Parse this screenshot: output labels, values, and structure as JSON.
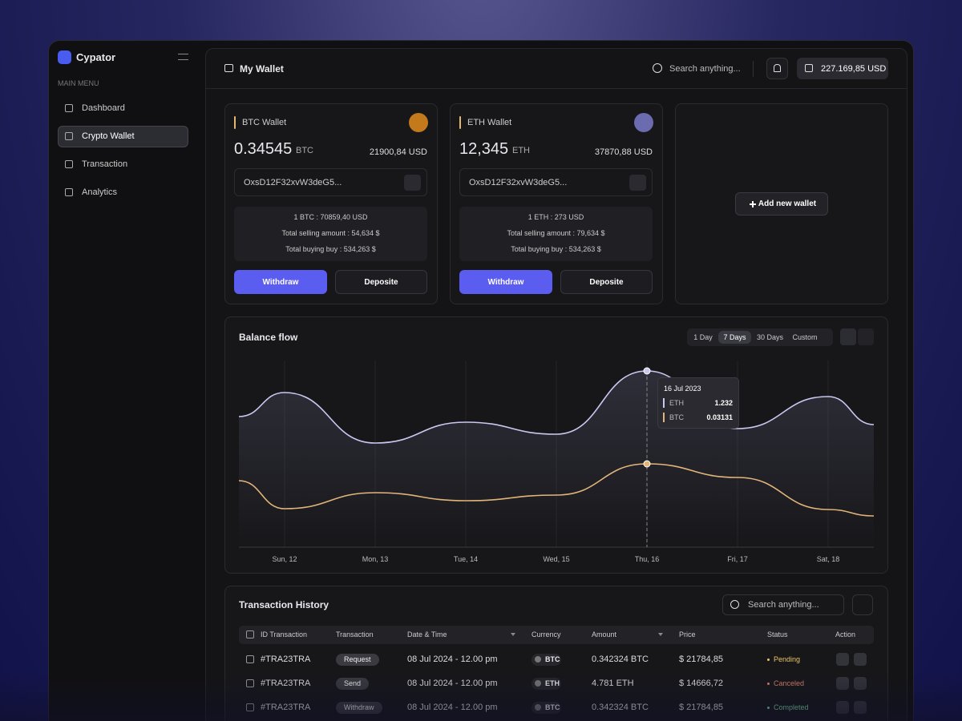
{
  "sidebar": {
    "brand": "Cypator",
    "menu_label": "MAIN MENU",
    "items": [
      "Dashboard",
      "Crypto Wallet",
      "Transaction",
      "Analytics"
    ]
  },
  "header": {
    "title": "My Wallet",
    "search": "Search anything...",
    "balance": "227.169,85 USD"
  },
  "wallets": [
    {
      "name": "BTC Wallet",
      "amount": "0.34545",
      "unit": "BTC",
      "usd": "21900,84 USD",
      "address": "OxsD12F32xvW3deG5...",
      "rate": "1 BTC : 70859,40 USD",
      "selling": "Total selling amount : 54,634 $",
      "buying": "Total buying buy : 534,263 $",
      "withdraw": "Withdraw",
      "deposit": "Deposite"
    },
    {
      "name": "ETH Wallet",
      "amount": "12,345",
      "unit": "ETH",
      "usd": "37870,88 USD",
      "address": "OxsD12F32xvW3deG5...",
      "rate": "1 ETH : 273 USD",
      "selling": "Total selling amount : 79,634 $",
      "buying": "Total buying buy : 534,263 $",
      "withdraw": "Withdraw",
      "deposit": "Deposite"
    }
  ],
  "add_wallet": "Add new wallet",
  "balance_flow": {
    "title": "Balance flow",
    "ranges": [
      "1 Day",
      "7 Days",
      "30 Days",
      "Custom"
    ],
    "days": [
      "Sun, 12",
      "Mon, 13",
      "Tue, 14",
      "Wed, 15",
      "Thu, 16",
      "Fri, 17",
      "Sat, 18"
    ],
    "tooltip": {
      "date": "16 Jul 2023",
      "rows": [
        {
          "name": "ETH",
          "value": "1.232"
        },
        {
          "name": "BTC",
          "value": "0.03131"
        }
      ]
    }
  },
  "transactions": {
    "title": "Transaction History",
    "search": "Search anything...",
    "columns": [
      "ID Transaction",
      "Transaction",
      "Date & Time",
      "Currency",
      "Amount",
      "Price",
      "Status",
      "Action"
    ],
    "rows": [
      [
        "#TRA23TRA",
        "Request",
        "08 Jul 2024 - 12.00 pm",
        "BTC",
        "0.342324 BTC",
        "$ 21784,85",
        "Pending"
      ],
      [
        "#TRA23TRA",
        "Send",
        "08 Jul 2024 - 12.00 pm",
        "ETH",
        "4.781 ETH",
        "$ 14666,72",
        "Canceled"
      ],
      [
        "#TRA23TRA",
        "Withdraw",
        "08 Jul 2024 - 12.00 pm",
        "BTC",
        "0.342324 BTC",
        "$ 21784,85",
        "Completed"
      ]
    ]
  }
}
